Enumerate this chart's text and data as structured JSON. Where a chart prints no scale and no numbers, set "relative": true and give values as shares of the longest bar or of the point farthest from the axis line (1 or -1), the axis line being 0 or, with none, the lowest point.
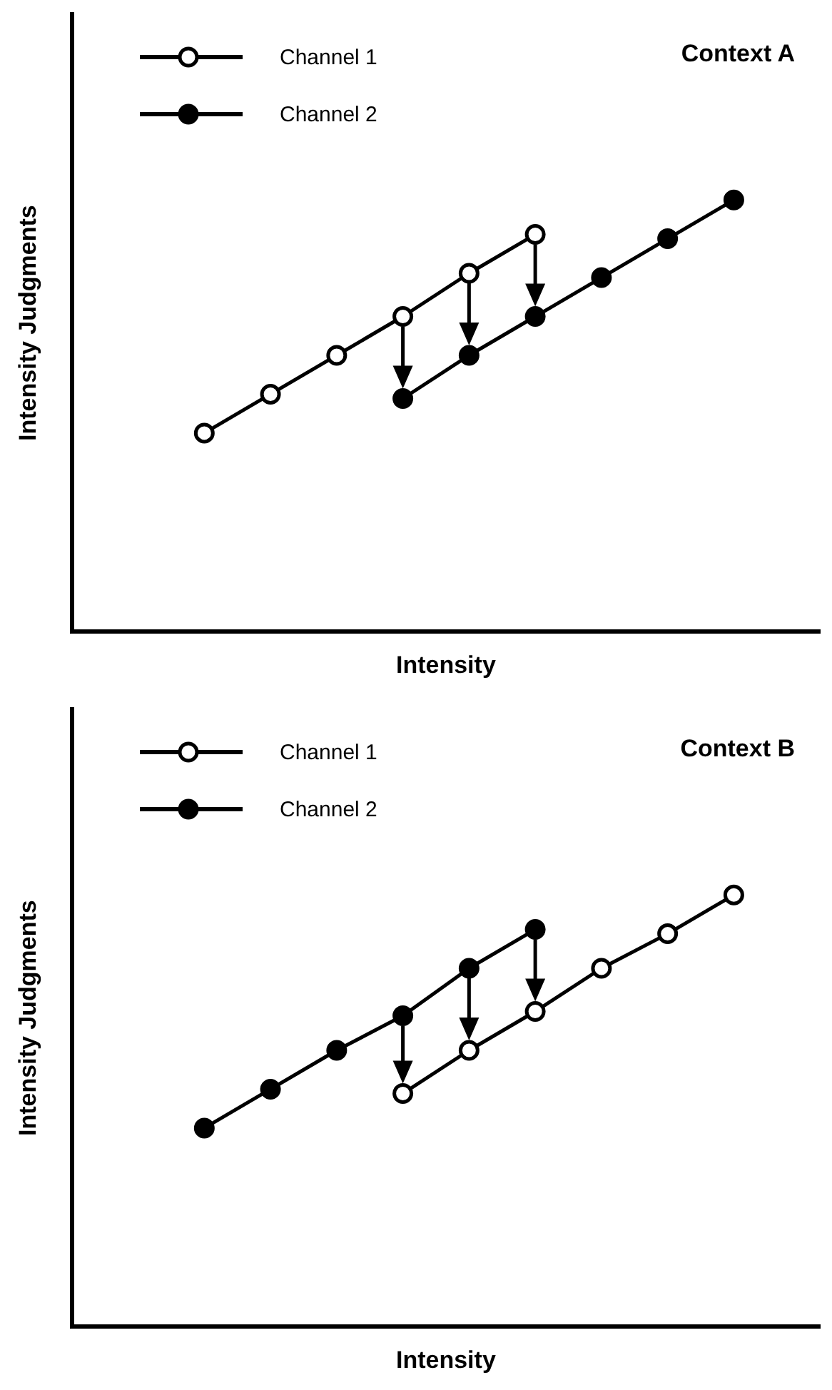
{
  "chart_data": [
    {
      "type": "line",
      "title": "Context A",
      "xlabel": "Intensity",
      "ylabel": "Intensity Judgments",
      "relative": true,
      "legend": "top left",
      "marker": "circle",
      "categories": [
        null,
        null,
        null,
        null,
        null,
        null,
        null,
        null,
        null
      ],
      "series": [
        {
          "name": "Channel 1",
          "color": "#ffffff",
          "values": [
            0.46,
            0.55,
            0.64,
            0.73,
            0.83,
            0.92,
            null,
            null,
            null
          ]
        },
        {
          "name": "Channel 2",
          "color": "#000000",
          "values": [
            null,
            null,
            null,
            0.54,
            0.64,
            0.73,
            0.82,
            0.91,
            1
          ]
        }
      ]
    },
    {
      "type": "line",
      "title": "Context B",
      "xlabel": "Intensity",
      "ylabel": "Intensity Judgments",
      "relative": true,
      "legend": "top left",
      "marker": "circle",
      "categories": [
        null,
        null,
        null,
        null,
        null,
        null,
        null,
        null,
        null
      ],
      "series": [
        {
          "name": "Channel 1",
          "color": "#ffffff",
          "values": [
            null,
            null,
            null,
            0.54,
            0.64,
            0.73,
            0.83,
            0.91,
            1
          ]
        },
        {
          "name": "Channel 2",
          "color": "#000000",
          "values": [
            0.46,
            0.55,
            0.64,
            0.72,
            0.83,
            0.92,
            null,
            null,
            null
          ]
        }
      ]
    }
  ]
}
